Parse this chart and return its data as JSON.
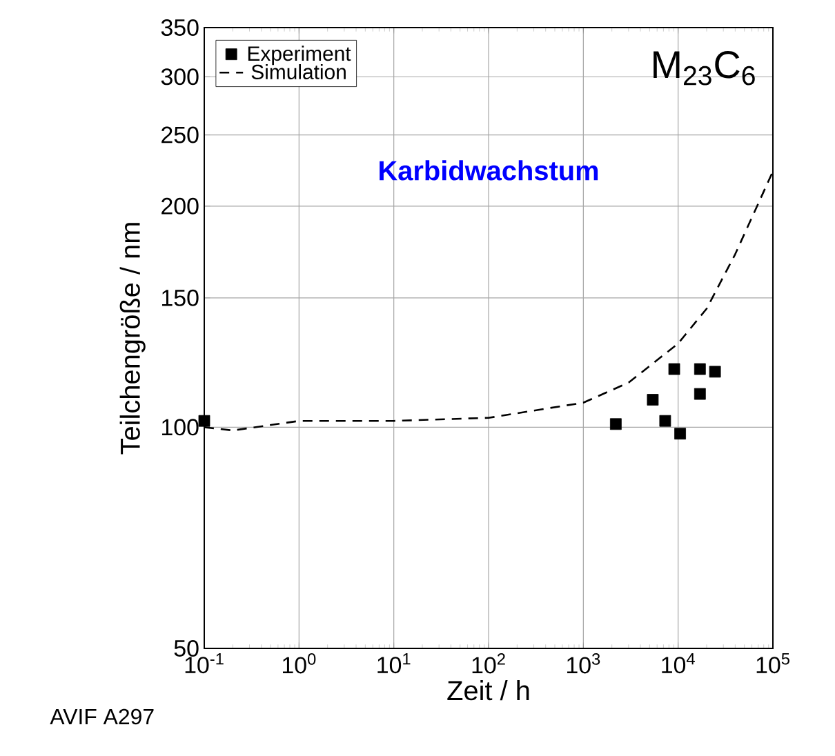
{
  "chart_data": {
    "type": "scatter",
    "xlabel": "Zeit / h",
    "ylabel": "Teilchengröße / nm",
    "log": "xy",
    "grid": true,
    "legend": "top left",
    "xlim": [
      0.1,
      100000
    ],
    "ylim": [
      50,
      350
    ],
    "xticks": [
      {
        "value": 0.1,
        "label": "10$^{-1}$"
      },
      {
        "value": 1,
        "label": "10$^{0}$"
      },
      {
        "value": 10,
        "label": "10$^{1}$"
      },
      {
        "value": 100,
        "label": "10$^{2}$"
      },
      {
        "value": 1000,
        "label": "10$^{3}$"
      },
      {
        "value": 10000,
        "label": "10$^{4}$"
      },
      {
        "value": 100000,
        "label": "10$^{5}$"
      }
    ],
    "yticks": [
      50,
      100,
      150,
      200,
      250,
      300,
      350
    ],
    "series": [
      {
        "name": "Experiment",
        "marker": "square",
        "color": "#000000",
        "x": [
          0.1,
          2200,
          5400,
          7300,
          9100,
          10500,
          17000,
          17000,
          24500
        ],
        "values": [
          102,
          101,
          109,
          102,
          120,
          98,
          120,
          111,
          119
        ]
      },
      {
        "name": "Simulation",
        "type": "line",
        "line_style": "dashed",
        "color": "#000000",
        "x": [
          0.1,
          0.2,
          1,
          10,
          100,
          1000,
          3000,
          10000,
          20000,
          40000,
          100000
        ],
        "values": [
          100,
          99,
          102,
          102,
          103,
          108,
          115,
          130,
          145,
          172,
          223
        ]
      }
    ],
    "annotations": [
      "Karbidwachstum",
      "M$_{23}$C$_{6}$",
      "AVIF A297"
    ]
  }
}
